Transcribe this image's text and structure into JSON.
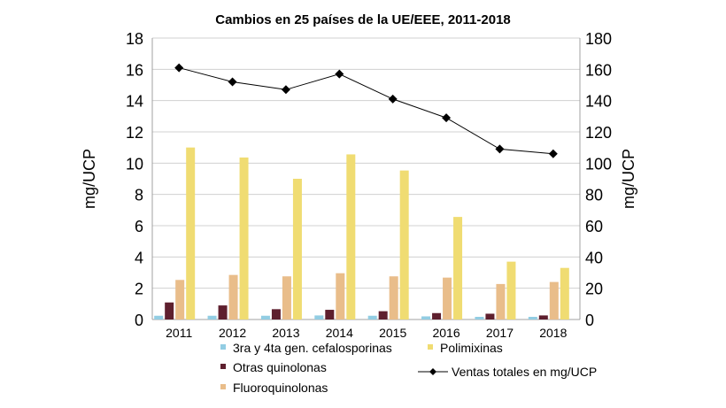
{
  "chart_data": {
    "type": "bar",
    "title": "Cambios en 25 países de la UE/EEE, 2011-2018",
    "ylabel": "mg/UCP",
    "y2label": "mg/UCP",
    "ylim": [
      0,
      18
    ],
    "y2lim": [
      0,
      180
    ],
    "yticks": [
      "0",
      "2",
      "4",
      "6",
      "8",
      "10",
      "12",
      "14",
      "16",
      "18"
    ],
    "y2ticks": [
      "0",
      "20",
      "40",
      "60",
      "80",
      "100",
      "120",
      "140",
      "160",
      "180"
    ],
    "grid": true,
    "legend_position": "bottom",
    "categories": [
      "2011",
      "2012",
      "2013",
      "2014",
      "2015",
      "2016",
      "2017",
      "2018"
    ],
    "series": [
      {
        "name": "3ra y 4ta gen. cefalosporinas",
        "color": "#92cde3",
        "axis": "left",
        "values": [
          0.24,
          0.24,
          0.24,
          0.26,
          0.24,
          0.2,
          0.17,
          0.17
        ]
      },
      {
        "name": "Otras quinolonas",
        "color": "#5e1f2e",
        "axis": "left",
        "values": [
          1.09,
          0.9,
          0.66,
          0.62,
          0.53,
          0.41,
          0.37,
          0.26
        ]
      },
      {
        "name": "Fluoroquinolonas",
        "color": "#e9bd8a",
        "axis": "left",
        "values": [
          2.53,
          2.85,
          2.76,
          2.96,
          2.76,
          2.68,
          2.27,
          2.4
        ]
      },
      {
        "name": "Polimixinas",
        "color": "#f0dc72",
        "axis": "left",
        "values": [
          11.0,
          10.36,
          9.0,
          10.56,
          9.53,
          6.56,
          3.7,
          3.3
        ]
      },
      {
        "name": "Ventas totales en mg/UCP",
        "type": "line",
        "color": "#000000",
        "axis": "right",
        "values": [
          161,
          152,
          147,
          157,
          141,
          129,
          109,
          106
        ]
      }
    ]
  }
}
